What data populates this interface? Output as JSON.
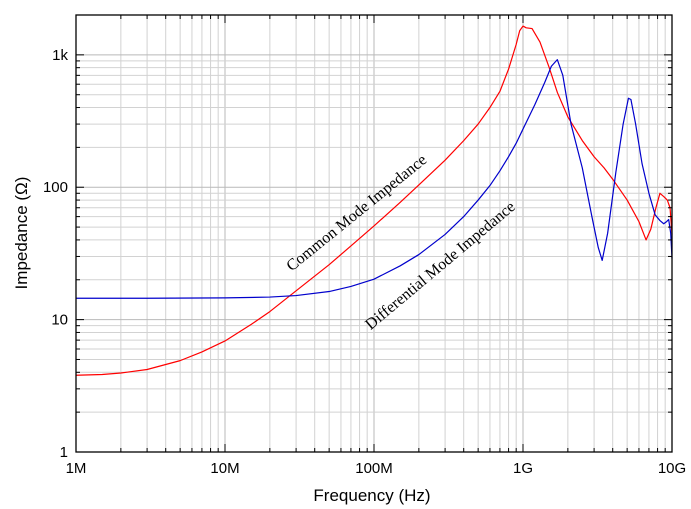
{
  "chart_data": {
    "type": "line",
    "title": "",
    "xlabel": "Frequency (Hz)",
    "ylabel": "Impedance (Ω)",
    "xscale": "log",
    "yscale": "log",
    "xlim": [
      1000000,
      10000000000
    ],
    "ylim": [
      1,
      2000
    ],
    "grid": true,
    "x_ticks": [
      {
        "value": 1000000,
        "label": "1M"
      },
      {
        "value": 10000000,
        "label": "10M"
      },
      {
        "value": 100000000,
        "label": "100M"
      },
      {
        "value": 1000000000,
        "label": "1G"
      },
      {
        "value": 10000000000,
        "label": "10G"
      }
    ],
    "y_ticks": [
      {
        "value": 1,
        "label": "1"
      },
      {
        "value": 10,
        "label": "10"
      },
      {
        "value": 100,
        "label": "100"
      },
      {
        "value": 1000,
        "label": "1k"
      }
    ],
    "series": [
      {
        "color": "#ff0000",
        "points": [
          [
            1000000,
            3.8
          ],
          [
            1500000,
            3.85
          ],
          [
            2000000,
            3.95
          ],
          [
            3000000,
            4.2
          ],
          [
            5000000,
            4.9
          ],
          [
            7000000,
            5.7
          ],
          [
            10000000,
            6.9
          ],
          [
            15000000,
            9.2
          ],
          [
            20000000,
            11.5
          ],
          [
            30000000,
            16.5
          ],
          [
            50000000,
            26
          ],
          [
            70000000,
            36
          ],
          [
            100000000,
            51
          ],
          [
            150000000,
            77
          ],
          [
            200000000,
            104
          ],
          [
            300000000,
            160
          ],
          [
            400000000,
            225
          ],
          [
            500000000,
            300
          ],
          [
            600000000,
            400
          ],
          [
            700000000,
            530
          ],
          [
            800000000,
            780
          ],
          [
            900000000,
            1200
          ],
          [
            950000000,
            1520
          ],
          [
            1000000000,
            1650
          ],
          [
            1050000000,
            1600
          ],
          [
            1150000000,
            1580
          ],
          [
            1300000000,
            1250
          ],
          [
            1500000000,
            800
          ],
          [
            1700000000,
            520
          ],
          [
            2000000000,
            340
          ],
          [
            2500000000,
            225
          ],
          [
            3000000000,
            170
          ],
          [
            3500000000,
            140
          ],
          [
            4000000000,
            115
          ],
          [
            5000000000,
            80
          ],
          [
            6000000000,
            55
          ],
          [
            6700000000,
            40
          ],
          [
            7200000000,
            48
          ],
          [
            7800000000,
            70
          ],
          [
            8300000000,
            90
          ],
          [
            8800000000,
            85
          ],
          [
            9300000000,
            80
          ],
          [
            9700000000,
            70
          ],
          [
            10000000000,
            44
          ]
        ]
      },
      {
        "color": "#0000cc",
        "points": [
          [
            1000000,
            14.5
          ],
          [
            3000000,
            14.5
          ],
          [
            10000000,
            14.6
          ],
          [
            20000000,
            14.8
          ],
          [
            30000000,
            15.2
          ],
          [
            50000000,
            16.3
          ],
          [
            70000000,
            17.8
          ],
          [
            100000000,
            20.2
          ],
          [
            150000000,
            25.5
          ],
          [
            200000000,
            31
          ],
          [
            300000000,
            44
          ],
          [
            400000000,
            60
          ],
          [
            500000000,
            80
          ],
          [
            600000000,
            103
          ],
          [
            700000000,
            133
          ],
          [
            800000000,
            170
          ],
          [
            900000000,
            215
          ],
          [
            1000000000,
            275
          ],
          [
            1200000000,
            420
          ],
          [
            1400000000,
            620
          ],
          [
            1550000000,
            820
          ],
          [
            1700000000,
            920
          ],
          [
            1850000000,
            700
          ],
          [
            2100000000,
            300
          ],
          [
            2500000000,
            140
          ],
          [
            2900000000,
            60
          ],
          [
            3200000000,
            35
          ],
          [
            3400000000,
            28
          ],
          [
            3700000000,
            45
          ],
          [
            4200000000,
            130
          ],
          [
            4700000000,
            300
          ],
          [
            5100000000,
            470
          ],
          [
            5300000000,
            460
          ],
          [
            5700000000,
            300
          ],
          [
            6300000000,
            150
          ],
          [
            7000000000,
            90
          ],
          [
            7700000000,
            62
          ],
          [
            8300000000,
            56
          ],
          [
            8800000000,
            53
          ],
          [
            9200000000,
            55
          ],
          [
            9500000000,
            57
          ],
          [
            9800000000,
            45
          ],
          [
            10000000000,
            29
          ]
        ]
      }
    ],
    "annotations": [
      {
        "text": "Common Mode Impedance",
        "x": 28000000,
        "y": 23,
        "angle": -39
      },
      {
        "text": "Differential Mode Impedance",
        "x": 95000000,
        "y": 8.3,
        "angle": -40
      }
    ]
  }
}
